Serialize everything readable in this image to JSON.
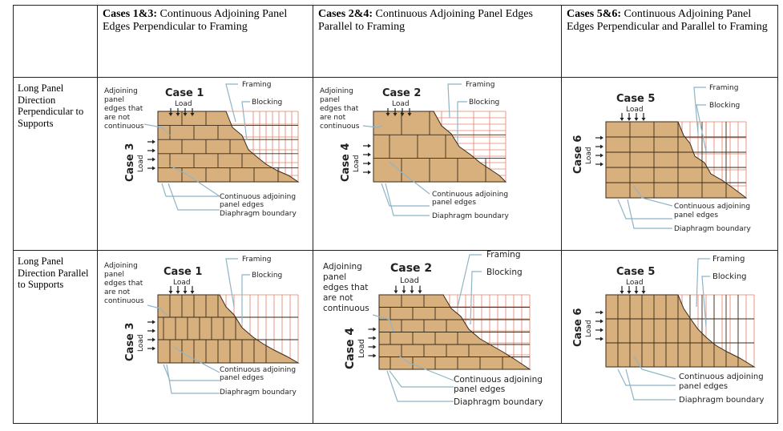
{
  "header": {
    "corner": "",
    "col1": {
      "bold": "Cases 1&3:",
      "rest": " Continuous Adjoining Panel Edges Perpendicular to Framing"
    },
    "col2": {
      "bold": "Cases 2&4:",
      "rest": " Continuous Adjoining Panel Edges Parallel to Framing"
    },
    "col3": {
      "bold": "Cases 5&6:",
      "rest": " Continuous Adjoining Panel Edges Perpendicular and Parallel to Framing"
    }
  },
  "rows": [
    {
      "label": "Long Panel Direction Perpendicular to Supports"
    },
    {
      "label": "Long Panel Direction Parallel to Supports"
    }
  ],
  "diagram": {
    "framing": "Framing",
    "blocking": "Blocking",
    "load": "Load",
    "adjoining_1": "Adjoining",
    "adjoining_2": "panel",
    "adjoining_3": "edges that",
    "adjoining_4": "are not",
    "adjoining_5": "continuous",
    "cont_1": "Continuous adjoining",
    "cont_2": "panel edges",
    "boundary": "Diaphragm boundary",
    "case1": "Case 1",
    "case2": "Case 2",
    "case3": "Case 3",
    "case4": "Case 4",
    "case5": "Case 5",
    "case6": "Case 6"
  },
  "colors": {
    "panel_fill": "#d8b07e",
    "panel_line": "#3a2a18",
    "framing_line": "#e0806a",
    "callout_line": "#8fb4c6"
  }
}
